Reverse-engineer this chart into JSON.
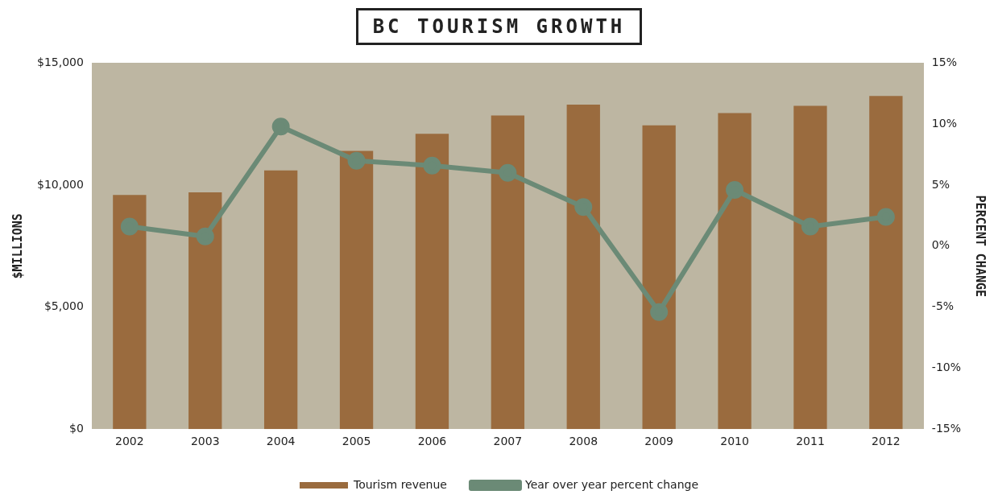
{
  "chart_data": {
    "type": "bar",
    "title": "BC TOURISM GROWTH",
    "ylabel": "$MILLIONS",
    "y2label": "PERCENT CHANGE",
    "categories": [
      "2002",
      "2003",
      "2004",
      "2005",
      "2006",
      "2007",
      "2008",
      "2009",
      "2010",
      "2011",
      "2012"
    ],
    "series": [
      {
        "name": "Tourism revenue",
        "color": "#9a6b3e",
        "values": [
          9600,
          9700,
          10600,
          11400,
          12100,
          12850,
          13300,
          12450,
          12950,
          13250,
          13650
        ]
      },
      {
        "name": "Year over year percent change",
        "type": "line",
        "axis": "y2",
        "color": "#6b8a76",
        "values": [
          1.6,
          0.8,
          9.8,
          7.0,
          6.6,
          6.0,
          3.2,
          -5.4,
          4.6,
          1.6,
          2.4
        ]
      }
    ],
    "ylim": [
      0,
      15000
    ],
    "yticks": [
      {
        "value": 0,
        "label": "$0"
      },
      {
        "value": 5000,
        "label": "$5,000"
      },
      {
        "value": 10000,
        "label": "$10,000"
      },
      {
        "value": 15000,
        "label": "$15,000"
      }
    ],
    "y2lim": [
      -15,
      15
    ],
    "y2ticks": [
      {
        "value": -15,
        "label": "-15%"
      },
      {
        "value": -10,
        "label": "-10%"
      },
      {
        "value": -5,
        "label": "-5%"
      },
      {
        "value": 0,
        "label": "0%"
      },
      {
        "value": 5,
        "label": "5%"
      },
      {
        "value": 10,
        "label": "10%"
      },
      {
        "value": 15,
        "label": "15%"
      }
    ],
    "grid": false,
    "legend": "bottom",
    "marker": "circle"
  }
}
